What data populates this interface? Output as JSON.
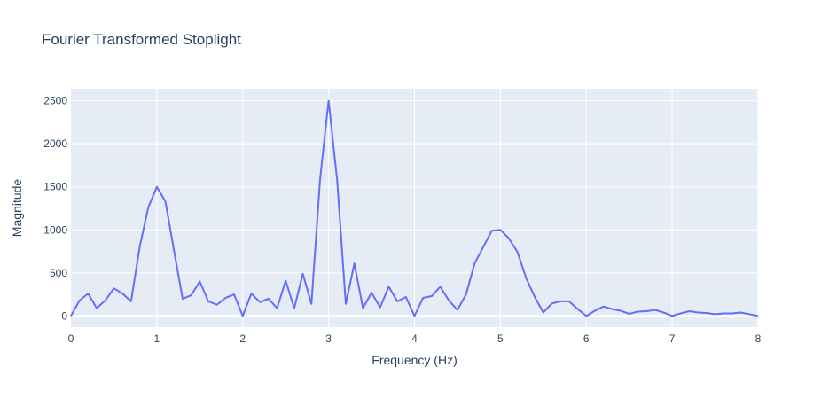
{
  "chart_data": {
    "type": "line",
    "title": "Fourier Transformed Stoplight",
    "xlabel": "Frequency (Hz)",
    "ylabel": "Magnitude",
    "xlim": [
      0,
      8
    ],
    "ylim": [
      -130,
      2640
    ],
    "x_ticks": [
      "0",
      "1",
      "2",
      "3",
      "4",
      "5",
      "6",
      "7",
      "8"
    ],
    "y_ticks": [
      "0",
      "500",
      "1000",
      "1500",
      "2000",
      "2500"
    ],
    "grid": true,
    "line_color": "#636efa",
    "plot_bg": "#e5ecf6",
    "series": [
      {
        "x": [
          0,
          0.1,
          0.2,
          0.3,
          0.4,
          0.5,
          0.6,
          0.7,
          0.8,
          0.9,
          1.0,
          1.1,
          1.2,
          1.3,
          1.4,
          1.5,
          1.6,
          1.7,
          1.8,
          1.9,
          2.0,
          2.1,
          2.2,
          2.3,
          2.4,
          2.5,
          2.6,
          2.7,
          2.8,
          2.9,
          3.0,
          3.1,
          3.2,
          3.3,
          3.4,
          3.5,
          3.6,
          3.7,
          3.8,
          3.9,
          4.0,
          4.1,
          4.2,
          4.3,
          4.4,
          4.5,
          4.6,
          4.7,
          4.8,
          4.9,
          5.0,
          5.1,
          5.2,
          5.3,
          5.4,
          5.5,
          5.6,
          5.7,
          5.8,
          5.9,
          6.0,
          6.1,
          6.2,
          6.3,
          6.4,
          6.5,
          6.6,
          6.7,
          6.8,
          6.9,
          7.0,
          7.1,
          7.2,
          7.3,
          7.4,
          7.5,
          7.6,
          7.7,
          7.8,
          7.9,
          8.0
        ],
        "values": [
          0,
          180,
          260,
          90,
          180,
          320,
          260,
          170,
          800,
          1260,
          1500,
          1330,
          760,
          200,
          240,
          400,
          170,
          130,
          210,
          250,
          0,
          260,
          160,
          200,
          90,
          410,
          90,
          490,
          140,
          1580,
          2500,
          1570,
          140,
          610,
          90,
          270,
          100,
          340,
          170,
          220,
          0,
          210,
          230,
          340,
          180,
          70,
          250,
          610,
          800,
          990,
          1000,
          900,
          740,
          440,
          220,
          40,
          145,
          170,
          170,
          80,
          0,
          60,
          110,
          80,
          60,
          25,
          50,
          55,
          70,
          40,
          0,
          30,
          55,
          40,
          35,
          20,
          30,
          30,
          40,
          20,
          0
        ]
      }
    ]
  }
}
